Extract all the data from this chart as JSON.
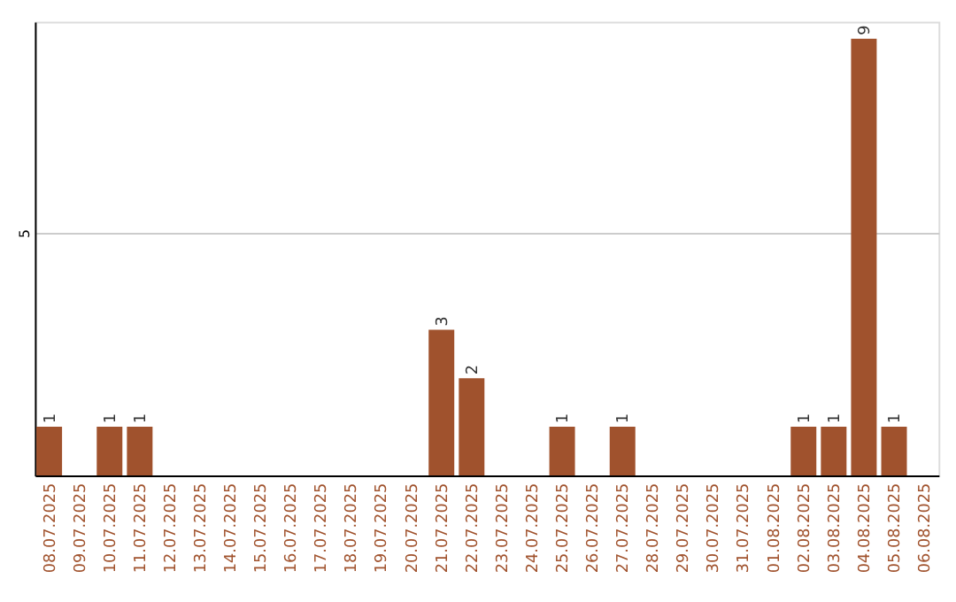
{
  "chart_data": {
    "type": "bar",
    "categories": [
      "08.07.2025",
      "09.07.2025",
      "10.07.2025",
      "11.07.2025",
      "12.07.2025",
      "13.07.2025",
      "14.07.2025",
      "15.07.2025",
      "16.07.2025",
      "17.07.2025",
      "18.07.2025",
      "19.07.2025",
      "20.07.2025",
      "21.07.2025",
      "22.07.2025",
      "23.07.2025",
      "24.07.2025",
      "25.07.2025",
      "26.07.2025",
      "27.07.2025",
      "28.07.2025",
      "29.07.2025",
      "30.07.2025",
      "31.07.2025",
      "01.08.2025",
      "02.08.2025",
      "03.08.2025",
      "04.08.2025",
      "05.08.2025",
      "06.08.2025"
    ],
    "values": [
      1,
      0,
      1,
      1,
      0,
      0,
      0,
      0,
      0,
      0,
      0,
      0,
      0,
      3,
      2,
      0,
      0,
      1,
      0,
      1,
      0,
      0,
      0,
      0,
      0,
      1,
      1,
      9,
      1,
      0
    ],
    "value_labels": [
      "1",
      null,
      "1",
      "1",
      null,
      null,
      null,
      null,
      null,
      null,
      null,
      null,
      null,
      "3",
      "2",
      null,
      null,
      "1",
      null,
      "1",
      null,
      null,
      null,
      null,
      null,
      "1",
      "1",
      "9",
      "1",
      null
    ],
    "color": "#a0522d",
    "ylim": [
      0,
      9.35
    ],
    "yticks": [
      5
    ],
    "grid": "y"
  }
}
